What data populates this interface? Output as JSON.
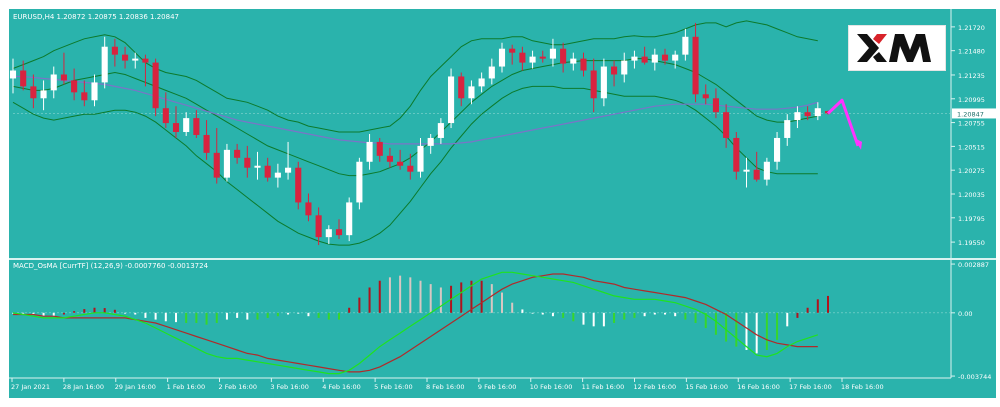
{
  "colors": {
    "background": "#2ab3ac",
    "grid": "#86d6d0",
    "bull_candle": "#ffffff",
    "bear_candle": "#d8233f",
    "band": "#0c7a2b",
    "ma": "#7a74c8",
    "macd_line": "#1fe21f",
    "signal_line": "#b02a2a",
    "hist_up": "#b0131d",
    "hist_down": "#ffffff",
    "hist_green": "#37d62b",
    "hist_light": "#d8c7c2",
    "arrow": "#ff33ff"
  },
  "header": {
    "symbol_label": "EURUSD,H4  1.20872 1.20875 1.20836 1.20847",
    "indicator_label": "MACD_OsMA [CurrTF] (12,26,9) -0.0007760 -0.0013724"
  },
  "logo": {
    "text": "XM",
    "colors": [
      "#111111",
      "#d8232a"
    ]
  },
  "current_price": "1.20847",
  "chart_data": [
    {
      "type": "candlestick",
      "title": "EURUSD,H4  1.20872 1.20875 1.20836 1.20847",
      "ylim": [
        1.1943,
        1.2187
      ],
      "y_ticks": [
        "1.21720",
        "1.21480",
        "1.21235",
        "1.20995",
        "1.20755",
        "1.20515",
        "1.20275",
        "1.20035",
        "1.19795",
        "1.19550"
      ],
      "x_ticks": [
        "27 Jan 2021",
        "28 Jan 16:00",
        "29 Jan 16:00",
        "1 Feb 16:00",
        "2 Feb 16:00",
        "3 Feb 16:00",
        "4 Feb 16:00",
        "5 Feb 16:00",
        "8 Feb 16:00",
        "9 Feb 16:00",
        "10 Feb 16:00",
        "11 Feb 16:00",
        "12 Feb 16:00",
        "15 Feb 16:00",
        "16 Feb 16:00",
        "17 Feb 16:00",
        "18 Feb 16:00"
      ],
      "ohlc": [
        [
          1.212,
          1.214,
          1.2105,
          1.2128
        ],
        [
          1.2128,
          1.2138,
          1.2108,
          1.2112
        ],
        [
          1.2112,
          1.2124,
          1.209,
          1.21
        ],
        [
          1.21,
          1.2118,
          1.2088,
          1.2108
        ],
        [
          1.2108,
          1.2132,
          1.21,
          1.2124
        ],
        [
          1.2124,
          1.2146,
          1.2114,
          1.2118
        ],
        [
          1.2118,
          1.213,
          1.2098,
          1.2106
        ],
        [
          1.2106,
          1.2118,
          1.2092,
          1.2098
        ],
        [
          1.2098,
          1.2124,
          1.2092,
          1.2116
        ],
        [
          1.2116,
          1.2162,
          1.211,
          1.2152
        ],
        [
          1.2152,
          1.216,
          1.2132,
          1.2144
        ],
        [
          1.2144,
          1.2152,
          1.213,
          1.2138
        ],
        [
          1.2138,
          1.2146,
          1.213,
          1.214
        ],
        [
          1.214,
          1.2144,
          1.2112,
          1.2136
        ],
        [
          1.2136,
          1.214,
          1.2082,
          1.209
        ],
        [
          1.209,
          1.2106,
          1.207,
          1.2075
        ],
        [
          1.2075,
          1.2092,
          1.206,
          1.2066
        ],
        [
          1.2066,
          1.2086,
          1.2062,
          1.208
        ],
        [
          1.208,
          1.2088,
          1.206,
          1.2063
        ],
        [
          1.2063,
          1.2078,
          1.2038,
          1.2045
        ],
        [
          1.2045,
          1.207,
          1.2014,
          1.202
        ],
        [
          1.202,
          1.2054,
          1.2016,
          1.2048
        ],
        [
          1.2048,
          1.2054,
          1.2034,
          1.204
        ],
        [
          1.204,
          1.2052,
          1.202,
          1.203
        ],
        [
          1.203,
          1.2046,
          1.2018,
          1.2032
        ],
        [
          1.2032,
          1.204,
          1.2016,
          1.202
        ],
        [
          1.202,
          1.2034,
          1.201,
          1.2025
        ],
        [
          1.2025,
          1.2056,
          1.2018,
          1.203
        ],
        [
          1.203,
          1.2036,
          1.1988,
          1.1995
        ],
        [
          1.1995,
          1.2004,
          1.1976,
          1.1982
        ],
        [
          1.1982,
          1.199,
          1.1952,
          1.196
        ],
        [
          1.196,
          1.1972,
          1.1953,
          1.1968
        ],
        [
          1.1968,
          1.1978,
          1.1958,
          1.1962
        ],
        [
          1.1962,
          1.2,
          1.1956,
          1.1995
        ],
        [
          1.1995,
          1.204,
          1.1988,
          1.2036
        ],
        [
          1.2036,
          1.2064,
          1.2028,
          1.2056
        ],
        [
          1.2056,
          1.206,
          1.2036,
          1.2042
        ],
        [
          1.2042,
          1.205,
          1.203,
          1.2036
        ],
        [
          1.2036,
          1.2048,
          1.2028,
          1.2032
        ],
        [
          1.2032,
          1.2044,
          1.2018,
          1.2026
        ],
        [
          1.2026,
          1.206,
          1.202,
          1.2052
        ],
        [
          1.2052,
          1.2064,
          1.2044,
          1.206
        ],
        [
          1.206,
          1.208,
          1.2054,
          1.2075
        ],
        [
          1.2075,
          1.213,
          1.207,
          1.2122
        ],
        [
          1.2122,
          1.2126,
          1.2092,
          1.21
        ],
        [
          1.21,
          1.2118,
          1.2094,
          1.2112
        ],
        [
          1.2112,
          1.2126,
          1.2106,
          1.212
        ],
        [
          1.212,
          1.214,
          1.2114,
          1.2132
        ],
        [
          1.2132,
          1.2156,
          1.2126,
          1.215
        ],
        [
          1.215,
          1.2154,
          1.2134,
          1.2146
        ],
        [
          1.2146,
          1.2152,
          1.2128,
          1.2136
        ],
        [
          1.2136,
          1.2148,
          1.213,
          1.2142
        ],
        [
          1.2142,
          1.2148,
          1.2136,
          1.214
        ],
        [
          1.214,
          1.216,
          1.2132,
          1.215
        ],
        [
          1.215,
          1.2156,
          1.2126,
          1.2135
        ],
        [
          1.2135,
          1.2146,
          1.2128,
          1.214
        ],
        [
          1.214,
          1.2146,
          1.2122,
          1.2128
        ],
        [
          1.2128,
          1.214,
          1.2086,
          1.21
        ],
        [
          1.21,
          1.214,
          1.2092,
          1.2132
        ],
        [
          1.2132,
          1.2138,
          1.2112,
          1.2124
        ],
        [
          1.2124,
          1.2146,
          1.2116,
          1.2138
        ],
        [
          1.2138,
          1.2148,
          1.213,
          1.2142
        ],
        [
          1.2142,
          1.2152,
          1.2134,
          1.2136
        ],
        [
          1.2136,
          1.215,
          1.2128,
          1.2144
        ],
        [
          1.2144,
          1.215,
          1.2134,
          1.2138
        ],
        [
          1.2138,
          1.2148,
          1.213,
          1.2144
        ],
        [
          1.2144,
          1.217,
          1.2138,
          1.2162
        ],
        [
          1.2162,
          1.2176,
          1.2096,
          1.2104
        ],
        [
          1.2104,
          1.2114,
          1.2094,
          1.21
        ],
        [
          1.21,
          1.211,
          1.208,
          1.2086
        ],
        [
          1.2086,
          1.2094,
          1.205,
          1.206
        ],
        [
          1.206,
          1.2066,
          1.2018,
          1.2026
        ],
        [
          1.2026,
          1.204,
          1.201,
          1.2028
        ],
        [
          1.2028,
          1.2046,
          1.2016,
          1.2018
        ],
        [
          1.2018,
          1.204,
          1.2012,
          1.2036
        ],
        [
          1.2036,
          1.2066,
          1.2028,
          1.206
        ],
        [
          1.206,
          1.2084,
          1.2052,
          1.2078
        ],
        [
          1.2078,
          1.2092,
          1.207,
          1.2086
        ],
        [
          1.2086,
          1.2092,
          1.2078,
          1.2082
        ],
        [
          1.2082,
          1.2096,
          1.2078,
          1.209
        ],
        [
          1.20872,
          1.20875,
          1.20836,
          1.20847
        ]
      ],
      "upper_band": [
        1.213,
        1.2134,
        1.2138,
        1.2142,
        1.2148,
        1.2152,
        1.2156,
        1.216,
        1.2162,
        1.2164,
        1.2162,
        1.2156,
        1.2146,
        1.2136,
        1.213,
        1.2126,
        1.2124,
        1.2122,
        1.2118,
        1.2112,
        1.2106,
        1.21,
        1.2098,
        1.2096,
        1.2092,
        1.2088,
        1.2082,
        1.2078,
        1.2076,
        1.2072,
        1.207,
        1.2068,
        1.2066,
        1.2066,
        1.2066,
        1.2068,
        1.207,
        1.2072,
        1.208,
        1.2092,
        1.2108,
        1.2122,
        1.2132,
        1.2142,
        1.2152,
        1.2158,
        1.216,
        1.216,
        1.216,
        1.2162,
        1.2162,
        1.2158,
        1.2156,
        1.2154,
        1.2154,
        1.2156,
        1.2158,
        1.216,
        1.216,
        1.216,
        1.2162,
        1.2163,
        1.2162,
        1.2162,
        1.2164,
        1.2166,
        1.217,
        1.2174,
        1.2176,
        1.2176,
        1.2172,
        1.2176,
        1.2178,
        1.2176,
        1.2174,
        1.217,
        1.2166,
        1.2162,
        1.216,
        1.2158
      ],
      "middle_band": [
        1.2112,
        1.211,
        1.2108,
        1.2108,
        1.211,
        1.2114,
        1.2118,
        1.212,
        1.2122,
        1.2124,
        1.2126,
        1.2124,
        1.212,
        1.2116,
        1.2112,
        1.2108,
        1.2104,
        1.21,
        1.2094,
        1.2088,
        1.2082,
        1.2076,
        1.207,
        1.2064,
        1.2058,
        1.2052,
        1.2048,
        1.2044,
        1.204,
        1.2036,
        1.2032,
        1.2028,
        1.2024,
        1.2022,
        1.2022,
        1.2024,
        1.2026,
        1.203,
        1.2034,
        1.204,
        1.2048,
        1.2056,
        1.2066,
        1.2076,
        1.2086,
        1.2096,
        1.2104,
        1.2112,
        1.2118,
        1.2124,
        1.2128,
        1.213,
        1.2132,
        1.2134,
        1.2136,
        1.2137,
        1.2138,
        1.2138,
        1.2138,
        1.2138,
        1.2138,
        1.214,
        1.214,
        1.2138,
        1.2136,
        1.2134,
        1.213,
        1.2126,
        1.212,
        1.2114,
        1.2106,
        1.2098,
        1.209,
        1.2082,
        1.2078,
        1.2076,
        1.2076,
        1.2078,
        1.208,
        1.2082
      ],
      "lower_band": [
        1.2096,
        1.209,
        1.2084,
        1.208,
        1.2078,
        1.208,
        1.2082,
        1.2084,
        1.2084,
        1.2086,
        1.2088,
        1.2088,
        1.2086,
        1.2082,
        1.2076,
        1.2068,
        1.206,
        1.2052,
        1.2042,
        1.2034,
        1.2026,
        1.2016,
        1.2008,
        1.2,
        1.1992,
        1.1984,
        1.1976,
        1.197,
        1.1964,
        1.196,
        1.1956,
        1.1953,
        1.1952,
        1.1952,
        1.1954,
        1.1958,
        1.1964,
        1.1972,
        1.1984,
        1.1996,
        1.201,
        1.2024,
        1.2036,
        1.205,
        1.2062,
        1.2074,
        1.2084,
        1.2092,
        1.21,
        1.2106,
        1.211,
        1.2112,
        1.2112,
        1.2112,
        1.211,
        1.211,
        1.211,
        1.2108,
        1.2106,
        1.2104,
        1.2102,
        1.2102,
        1.2102,
        1.2102,
        1.21,
        1.2098,
        1.2094,
        1.2088,
        1.208,
        1.2072,
        1.2062,
        1.205,
        1.204,
        1.203,
        1.2026,
        1.2024,
        1.2024,
        1.2024,
        1.2024,
        1.2024
      ],
      "moving_average": [
        1.2122,
        1.2122,
        1.2121,
        1.212,
        1.2119,
        1.2118,
        1.2117,
        1.2116,
        1.2115,
        1.2114,
        1.2112,
        1.211,
        1.2108,
        1.2105,
        1.2102,
        1.2099,
        1.2096,
        1.2093,
        1.209,
        1.2087,
        1.2084,
        1.2081,
        1.2078,
        1.2076,
        1.2074,
        1.2072,
        1.207,
        1.2068,
        1.2066,
        1.2064,
        1.2062,
        1.206,
        1.2058,
        1.2057,
        1.2056,
        1.2055,
        1.2055,
        1.2054,
        1.2054,
        1.2054,
        1.2054,
        1.2054,
        1.2054,
        1.2054,
        1.2055,
        1.2056,
        1.2058,
        1.206,
        1.2062,
        1.2064,
        1.2066,
        1.2068,
        1.207,
        1.2072,
        1.2074,
        1.2076,
        1.2078,
        1.208,
        1.2082,
        1.2084,
        1.2086,
        1.2088,
        1.209,
        1.2092,
        1.2093,
        1.2094,
        1.2094,
        1.2094,
        1.2094,
        1.2093,
        1.2092,
        1.2091,
        1.209,
        1.2089,
        1.2089,
        1.2089,
        1.209,
        1.2091,
        1.2093,
        1.2096
      ],
      "forecast_arrow": {
        "from": 1.20847,
        "peak": 1.2098,
        "target": 1.2052
      }
    },
    {
      "type": "bar+line",
      "title": "MACD_OsMA [CurrTF] (12,26,9) -0.0007760 -0.0013724",
      "ylim": [
        -0.00374,
        0.00289
      ],
      "y_ticks": [
        "0.002887",
        "0.00",
        "-0.003744"
      ],
      "histogram": [
        0.0,
        -5e-05,
        -0.00012,
        -0.0002,
        -0.00018,
        -0.0001,
        0.0001,
        0.00022,
        0.0003,
        0.00028,
        0.00018,
        0.0,
        -0.0001,
        -0.0003,
        -0.0004,
        -0.0005,
        -0.00055,
        -0.0006,
        -0.0006,
        -0.0007,
        -0.0006,
        -0.0004,
        -0.0003,
        -0.0004,
        -0.0004,
        -0.0003,
        -0.0002,
        -0.0001,
        0.0,
        -0.0002,
        -0.0003,
        -0.0004,
        -0.0004,
        0.0003,
        0.0009,
        0.0015,
        0.0019,
        0.0021,
        0.0022,
        0.0021,
        0.0019,
        0.0017,
        0.0015,
        0.0016,
        0.0018,
        0.0019,
        0.0019,
        0.0017,
        0.0012,
        0.0006,
        0.0002,
        0.0,
        -0.0001,
        -0.0002,
        -0.0003,
        -0.0005,
        -0.0007,
        -0.0008,
        -0.0008,
        -0.0006,
        -0.0004,
        -0.0003,
        -0.0002,
        -0.0001,
        -0.0001,
        -0.0002,
        -0.0004,
        -0.0006,
        -0.0009,
        -0.0013,
        -0.0017,
        -0.002,
        -0.0022,
        -0.0024,
        -0.0022,
        -0.0016,
        -0.0008,
        -0.0003,
        0.0003,
        0.0008,
        0.001
      ],
      "histogram_colors": [
        "w",
        "w",
        "w",
        "w",
        "w",
        "r",
        "r",
        "r",
        "r",
        "r",
        "r",
        "w",
        "w",
        "w",
        "w",
        "w",
        "w",
        "g",
        "g",
        "g",
        "g",
        "w",
        "w",
        "w",
        "g",
        "g",
        "g",
        "w",
        "w",
        "w",
        "g",
        "g",
        "g",
        "r",
        "r",
        "r",
        "r",
        "l",
        "l",
        "l",
        "l",
        "l",
        "l",
        "r",
        "r",
        "r",
        "r",
        "l",
        "l",
        "l",
        "w",
        "w",
        "w",
        "w",
        "g",
        "g",
        "w",
        "w",
        "w",
        "g",
        "g",
        "g",
        "w",
        "w",
        "w",
        "w",
        "g",
        "g",
        "g",
        "g",
        "g",
        "g",
        "w",
        "w",
        "g",
        "g",
        "w",
        "r",
        "r",
        "r",
        "r"
      ],
      "macd_line": [
        0.0,
        -0.0001,
        -0.0002,
        -0.0003,
        -0.0003,
        -0.0003,
        -0.0002,
        -0.0001,
        0.0,
        0.0,
        -0.0001,
        -0.0002,
        -0.0004,
        -0.0006,
        -0.0009,
        -0.0012,
        -0.0015,
        -0.0018,
        -0.0021,
        -0.0024,
        -0.0026,
        -0.0027,
        -0.0027,
        -0.0028,
        -0.0029,
        -0.003,
        -0.0031,
        -0.0032,
        -0.0033,
        -0.0034,
        -0.0035,
        -0.0036,
        -0.0036,
        -0.0034,
        -0.003,
        -0.0025,
        -0.002,
        -0.0016,
        -0.0012,
        -0.0008,
        -0.0004,
        0.0,
        0.0004,
        0.0008,
        0.0012,
        0.0016,
        0.002,
        0.0022,
        0.0024,
        0.0024,
        0.0023,
        0.0022,
        0.0021,
        0.002,
        0.0019,
        0.0018,
        0.0016,
        0.0014,
        0.0012,
        0.001,
        0.0009,
        0.0008,
        0.0008,
        0.0008,
        0.0007,
        0.0006,
        0.0004,
        0.0002,
        -0.0001,
        -0.0005,
        -0.001,
        -0.0015,
        -0.002,
        -0.0025,
        -0.0026,
        -0.0024,
        -0.002,
        -0.0017,
        -0.0015,
        -0.0013
      ],
      "signal_line": [
        -0.0001,
        -0.0001,
        -0.0001,
        -0.0002,
        -0.0002,
        -0.0003,
        -0.0003,
        -0.0003,
        -0.0003,
        -0.0003,
        -0.0003,
        -0.0003,
        -0.0004,
        -0.0005,
        -0.0006,
        -0.0008,
        -0.001,
        -0.0012,
        -0.0014,
        -0.0016,
        -0.0018,
        -0.002,
        -0.0022,
        -0.0024,
        -0.0025,
        -0.0027,
        -0.0028,
        -0.0029,
        -0.003,
        -0.0031,
        -0.0032,
        -0.0033,
        -0.0034,
        -0.0035,
        -0.0035,
        -0.0034,
        -0.0032,
        -0.0029,
        -0.0026,
        -0.0022,
        -0.0018,
        -0.0014,
        -0.001,
        -0.0006,
        -0.0002,
        0.0002,
        0.0006,
        0.001,
        0.0014,
        0.0017,
        0.0019,
        0.0021,
        0.0022,
        0.0023,
        0.0023,
        0.0022,
        0.0021,
        0.0019,
        0.0018,
        0.0017,
        0.0015,
        0.0014,
        0.0013,
        0.0012,
        0.0011,
        0.001,
        0.0009,
        0.0007,
        0.0005,
        0.0002,
        -0.0001,
        -0.0005,
        -0.0009,
        -0.0013,
        -0.0016,
        -0.0018,
        -0.0019,
        -0.002,
        -0.002,
        -0.002
      ]
    }
  ]
}
